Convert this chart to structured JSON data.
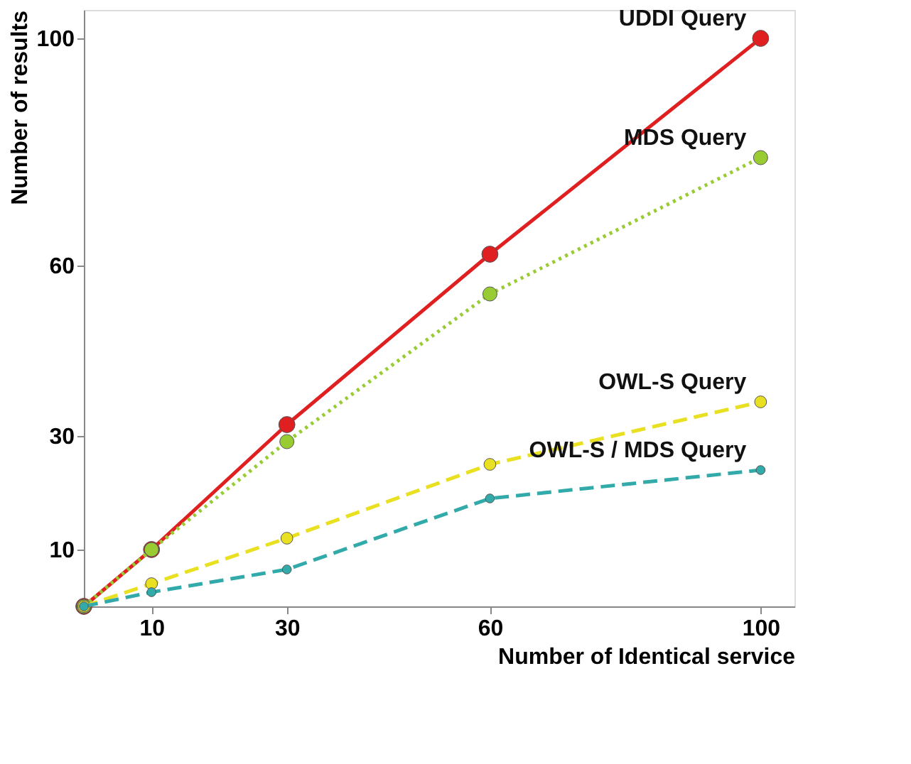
{
  "chart_data": {
    "type": "line",
    "xlabel": "Number of Identical service",
    "ylabel": "Number of results",
    "x": [
      0,
      10,
      30,
      60,
      100
    ],
    "xlim": [
      0,
      105
    ],
    "xticks": [
      10,
      30,
      60,
      100
    ],
    "ylim": [
      0,
      105
    ],
    "yticks": [
      10,
      30,
      60,
      100
    ],
    "grid": false,
    "marker": "circle",
    "series": [
      {
        "name": "UDDI Query",
        "color": "#e02020",
        "line_style": "solid",
        "values": [
          0,
          10,
          32,
          62,
          100
        ]
      },
      {
        "name": "MDS Query",
        "color": "#99cc33",
        "line_style": "dotted",
        "values": [
          0,
          10,
          29,
          55,
          79
        ]
      },
      {
        "name": "OWL-S Query",
        "color": "#e8e020",
        "line_style": "dashed",
        "values": [
          0,
          4,
          12,
          25,
          36
        ]
      },
      {
        "name": "OWL-S / MDS Query",
        "color": "#33aaaa",
        "line_style": "dashed",
        "values": [
          0,
          2.5,
          6.5,
          19,
          24
        ]
      }
    ]
  }
}
